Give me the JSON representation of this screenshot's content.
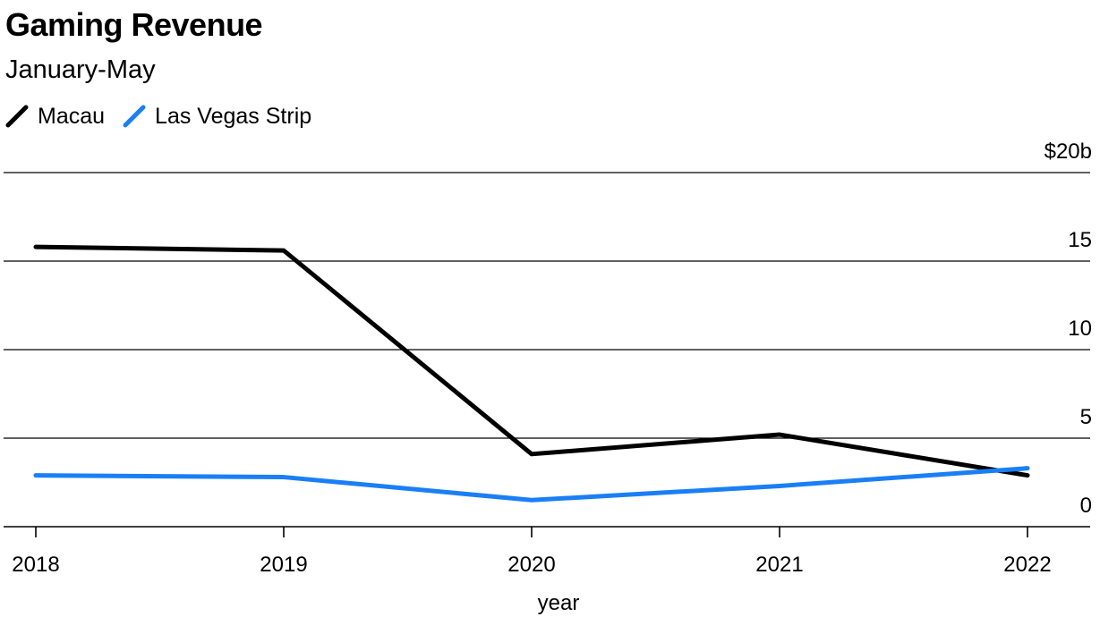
{
  "chart_data": {
    "type": "line",
    "title": "Gaming Revenue",
    "subtitle": "January-May",
    "xlabel": "year",
    "ylabel": "",
    "x": [
      2018,
      2019,
      2020,
      2021,
      2022
    ],
    "x_tick_labels": [
      "2018",
      "2019",
      "2020",
      "2021",
      "2022"
    ],
    "y_tick_labels": [
      "0",
      "5",
      "10",
      "15",
      "$20b"
    ],
    "y_ticks": [
      0,
      5,
      10,
      15,
      20
    ],
    "ylim": [
      0,
      20
    ],
    "grid": true,
    "legend_position": "top-left",
    "series": [
      {
        "name": "Macau",
        "color": "#000000",
        "values": [
          15.8,
          15.6,
          4.1,
          5.2,
          2.9
        ]
      },
      {
        "name": "Las Vegas Strip",
        "color": "#1a7ff5",
        "values": [
          2.9,
          2.8,
          1.5,
          2.3,
          3.3
        ]
      }
    ]
  }
}
